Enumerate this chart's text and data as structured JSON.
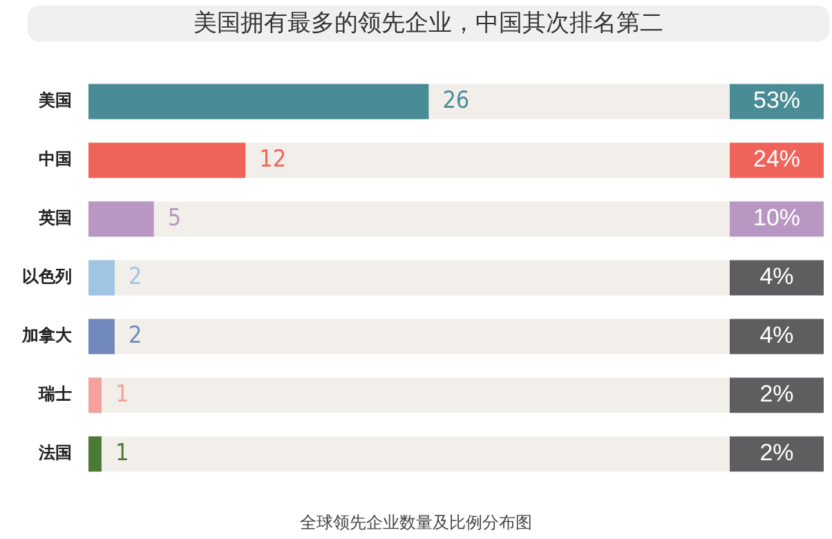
{
  "chart_data": {
    "type": "bar",
    "orientation": "horizontal",
    "title": "美国拥有最多的领先企业，中国其次排名第二",
    "categories": [
      "美国",
      "中国",
      "英国",
      "以色列",
      "加拿大",
      "瑞士",
      "法国"
    ],
    "values": [
      26,
      12,
      5,
      2,
      2,
      1,
      1
    ],
    "colors": [
      "#4a8c96",
      "#f0635a",
      "#b897c3",
      "#a0c4e4",
      "#7088bb",
      "#f4a09c",
      "#4a7a34"
    ],
    "xlim": [
      0,
      49
    ],
    "data_labels": true,
    "tick_labels": "y",
    "grid": false,
    "legend": false,
    "annotations": [
      "53%",
      "24%",
      "10%",
      "4%",
      "4%",
      "2%",
      "2%",
      "全球领先企业数量及比例分布图"
    ]
  }
}
